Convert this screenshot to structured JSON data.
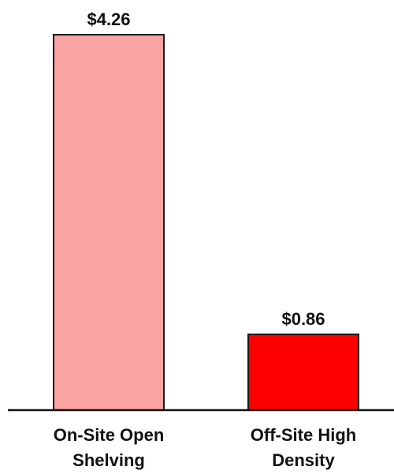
{
  "chart_data": {
    "type": "bar",
    "categories": [
      "On-Site Open Shelving",
      "Off-Site High Density"
    ],
    "values": [
      4.26,
      0.86
    ],
    "value_labels": [
      "$4.26",
      "$0.86"
    ],
    "colors": [
      "#f9a3a3",
      "#ff0000"
    ],
    "ylim": [
      0,
      4.26
    ]
  }
}
